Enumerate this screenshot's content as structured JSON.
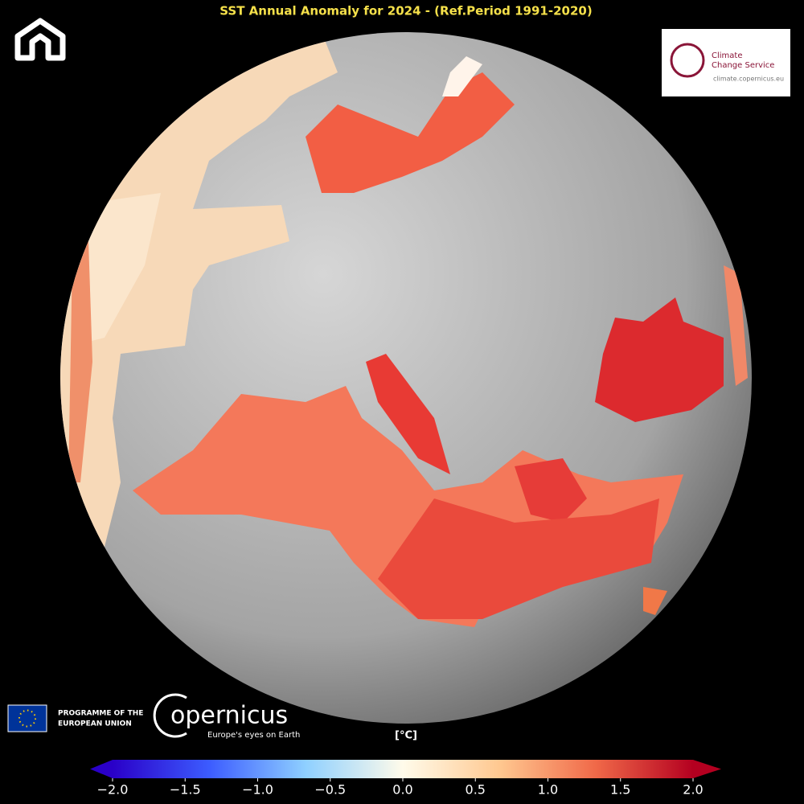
{
  "title": "SST Annual Anomaly for 2024 - (Ref.Period 1991-2020)",
  "climate_logo": {
    "line1": "Climate",
    "line2": "Change Service",
    "url": "climate.copernicus.eu"
  },
  "eu_logo": {
    "line1": "PROGRAMME OF THE",
    "line2": "EUROPEAN UNION"
  },
  "copernicus_logo": {
    "name": "opernicus",
    "tagline": "Europe's eyes on Earth"
  },
  "colorbar": {
    "label": "[°C]",
    "lim": [
      -2,
      2
    ],
    "ticks": [
      {
        "value": -2,
        "label": "−2.0"
      },
      {
        "value": -1.5,
        "label": "−1.5"
      },
      {
        "value": -1,
        "label": "−1.0"
      },
      {
        "value": -0.5,
        "label": "−0.5"
      },
      {
        "value": 0,
        "label": "0.0"
      },
      {
        "value": 0.5,
        "label": "0.5"
      },
      {
        "value": 1,
        "label": "1.0"
      },
      {
        "value": 1.5,
        "label": "1.5"
      },
      {
        "value": 2,
        "label": "2.0"
      }
    ],
    "colors": [
      "#2a00c8",
      "#3c5cff",
      "#8fd0ff",
      "#fffbea",
      "#ffc890",
      "#f06848",
      "#b40020"
    ]
  }
}
